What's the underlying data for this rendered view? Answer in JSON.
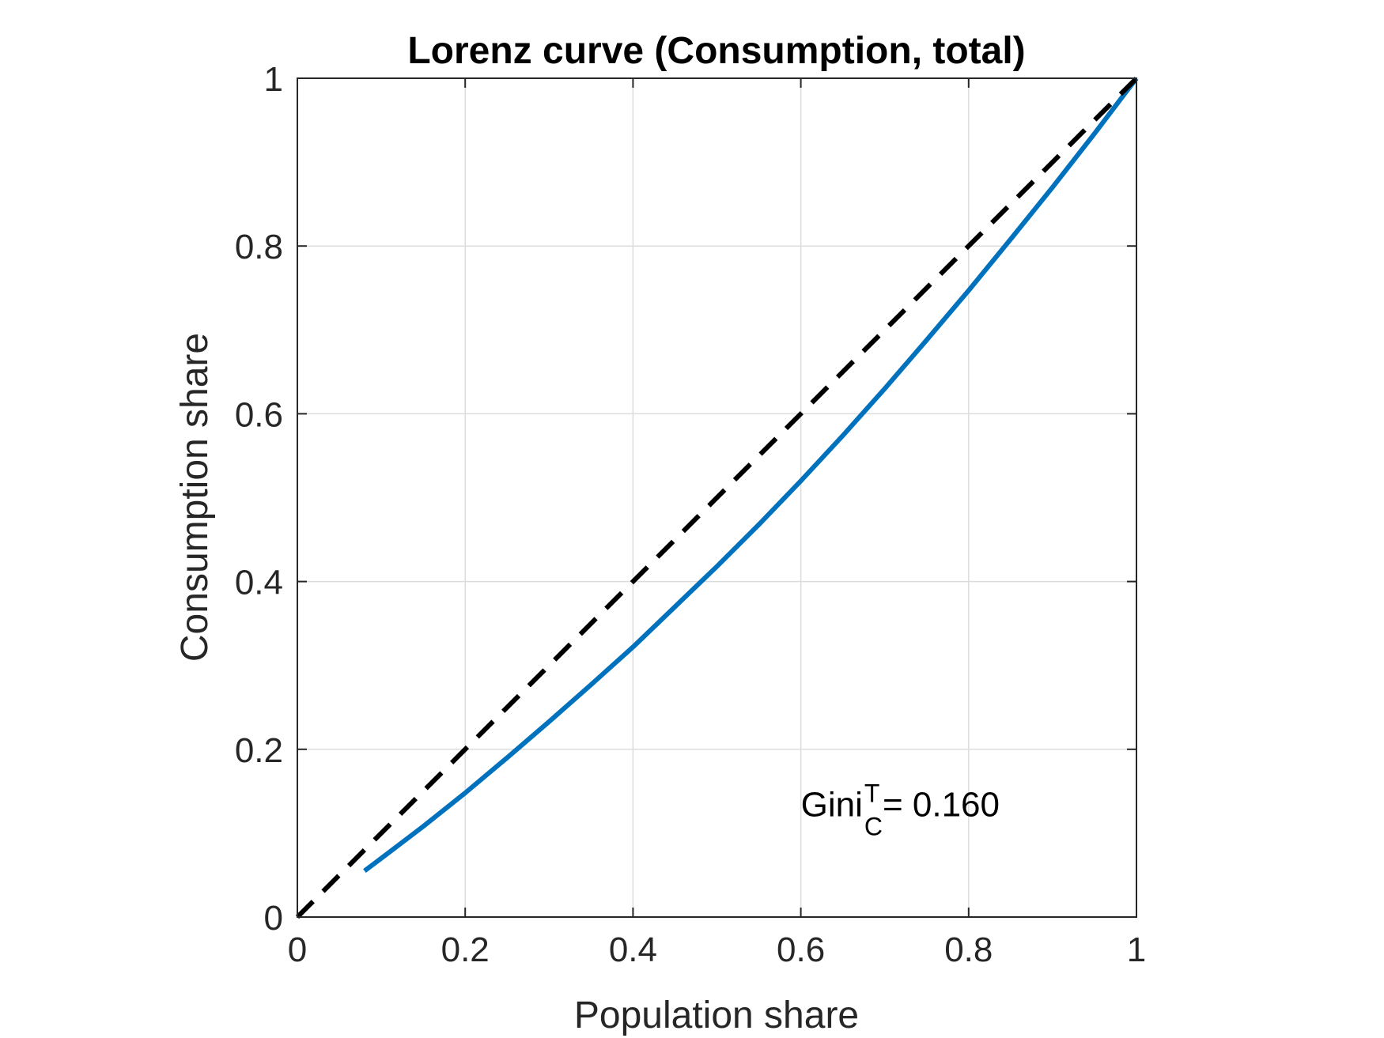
{
  "chart_data": {
    "type": "line",
    "title": "Lorenz curve (Consumption, total)",
    "xlabel": "Population share",
    "ylabel": "Consumption share",
    "xlim": [
      0,
      1
    ],
    "ylim": [
      0,
      1
    ],
    "grid": true,
    "x_ticks": [
      0,
      0.2,
      0.4,
      0.6,
      0.8,
      1
    ],
    "x_tick_labels": [
      "0",
      "0.2",
      "0.4",
      "0.6",
      "0.8",
      "1"
    ],
    "y_ticks": [
      0,
      0.2,
      0.4,
      0.6,
      0.8,
      1
    ],
    "y_tick_labels": [
      "0",
      "0.2",
      "0.4",
      "0.6",
      "0.8",
      "1"
    ],
    "series": [
      {
        "color": "#0072BD",
        "style": "solid",
        "x": [
          0.08,
          0.1,
          0.15,
          0.2,
          0.25,
          0.3,
          0.35,
          0.4,
          0.45,
          0.5,
          0.55,
          0.6,
          0.65,
          0.7,
          0.75,
          0.8,
          0.85,
          0.9,
          0.95,
          1.0
        ],
        "y": [
          0.055,
          0.07,
          0.108,
          0.148,
          0.19,
          0.233,
          0.277,
          0.322,
          0.37,
          0.418,
          0.468,
          0.52,
          0.574,
          0.63,
          0.688,
          0.747,
          0.808,
          0.87,
          0.934,
          1.0
        ]
      },
      {
        "color": "#000000",
        "style": "dashed",
        "x": [
          0,
          1
        ],
        "y": [
          0,
          1
        ]
      }
    ],
    "annotations": [
      {
        "base": "Gini",
        "superscript": "T",
        "subscript": "C",
        "text": " = 0.160",
        "x": 0.6,
        "y": 0.12
      }
    ]
  }
}
